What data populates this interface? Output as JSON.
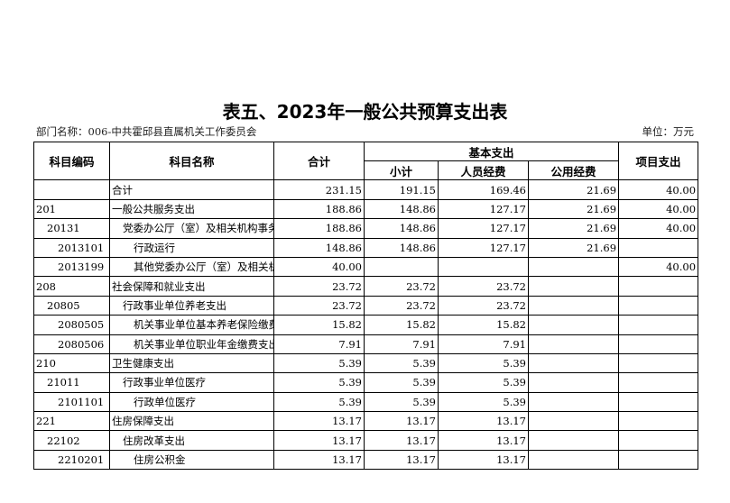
{
  "title": "表五、2023年一般公共预算支出表",
  "department": "部门名称：006-中共霍邱县直属机关工作委员会",
  "unit": "单位：万元",
  "headers": {
    "code": "科目编码",
    "name": "科目名称",
    "total": "合计",
    "basic": "基本支出",
    "subtotal": "小计",
    "personnel": "人员经费",
    "public": "公用经费",
    "project": "项目支出"
  },
  "rows": [
    {
      "code": "",
      "name": "合计",
      "level": 0,
      "total": "231.15",
      "subtotal": "191.15",
      "personnel": "169.46",
      "public": "21.69",
      "project": "40.00"
    },
    {
      "code": "201",
      "name": "一般公共服务支出",
      "level": 0,
      "total": "188.86",
      "subtotal": "148.86",
      "personnel": "127.17",
      "public": "21.69",
      "project": "40.00"
    },
    {
      "code": "20131",
      "name": "党委办公厅（室）及相关机构事务",
      "level": 1,
      "total": "188.86",
      "subtotal": "148.86",
      "personnel": "127.17",
      "public": "21.69",
      "project": "40.00"
    },
    {
      "code": "2013101",
      "name": "行政运行",
      "level": 2,
      "total": "148.86",
      "subtotal": "148.86",
      "personnel": "127.17",
      "public": "21.69",
      "project": ""
    },
    {
      "code": "2013199",
      "name": "其他党委办公厅（室）及相关机",
      "level": 2,
      "total": "40.00",
      "subtotal": "",
      "personnel": "",
      "public": "",
      "project": "40.00"
    },
    {
      "code": "208",
      "name": "社会保障和就业支出",
      "level": 0,
      "total": "23.72",
      "subtotal": "23.72",
      "personnel": "23.72",
      "public": "",
      "project": ""
    },
    {
      "code": "20805",
      "name": "行政事业单位养老支出",
      "level": 1,
      "total": "23.72",
      "subtotal": "23.72",
      "personnel": "23.72",
      "public": "",
      "project": ""
    },
    {
      "code": "2080505",
      "name": "机关事业单位基本养老保险缴费",
      "level": 2,
      "total": "15.82",
      "subtotal": "15.82",
      "personnel": "15.82",
      "public": "",
      "project": ""
    },
    {
      "code": "2080506",
      "name": "机关事业单位职业年金缴费支出",
      "level": 2,
      "total": "7.91",
      "subtotal": "7.91",
      "personnel": "7.91",
      "public": "",
      "project": ""
    },
    {
      "code": "210",
      "name": "卫生健康支出",
      "level": 0,
      "total": "5.39",
      "subtotal": "5.39",
      "personnel": "5.39",
      "public": "",
      "project": ""
    },
    {
      "code": "21011",
      "name": "行政事业单位医疗",
      "level": 1,
      "total": "5.39",
      "subtotal": "5.39",
      "personnel": "5.39",
      "public": "",
      "project": ""
    },
    {
      "code": "2101101",
      "name": "行政单位医疗",
      "level": 2,
      "total": "5.39",
      "subtotal": "5.39",
      "personnel": "5.39",
      "public": "",
      "project": ""
    },
    {
      "code": "221",
      "name": "住房保障支出",
      "level": 0,
      "total": "13.17",
      "subtotal": "13.17",
      "personnel": "13.17",
      "public": "",
      "project": ""
    },
    {
      "code": "22102",
      "name": "住房改革支出",
      "level": 1,
      "total": "13.17",
      "subtotal": "13.17",
      "personnel": "13.17",
      "public": "",
      "project": ""
    },
    {
      "code": "2210201",
      "name": "住房公积金",
      "level": 2,
      "total": "13.17",
      "subtotal": "13.17",
      "personnel": "13.17",
      "public": "",
      "project": ""
    }
  ]
}
